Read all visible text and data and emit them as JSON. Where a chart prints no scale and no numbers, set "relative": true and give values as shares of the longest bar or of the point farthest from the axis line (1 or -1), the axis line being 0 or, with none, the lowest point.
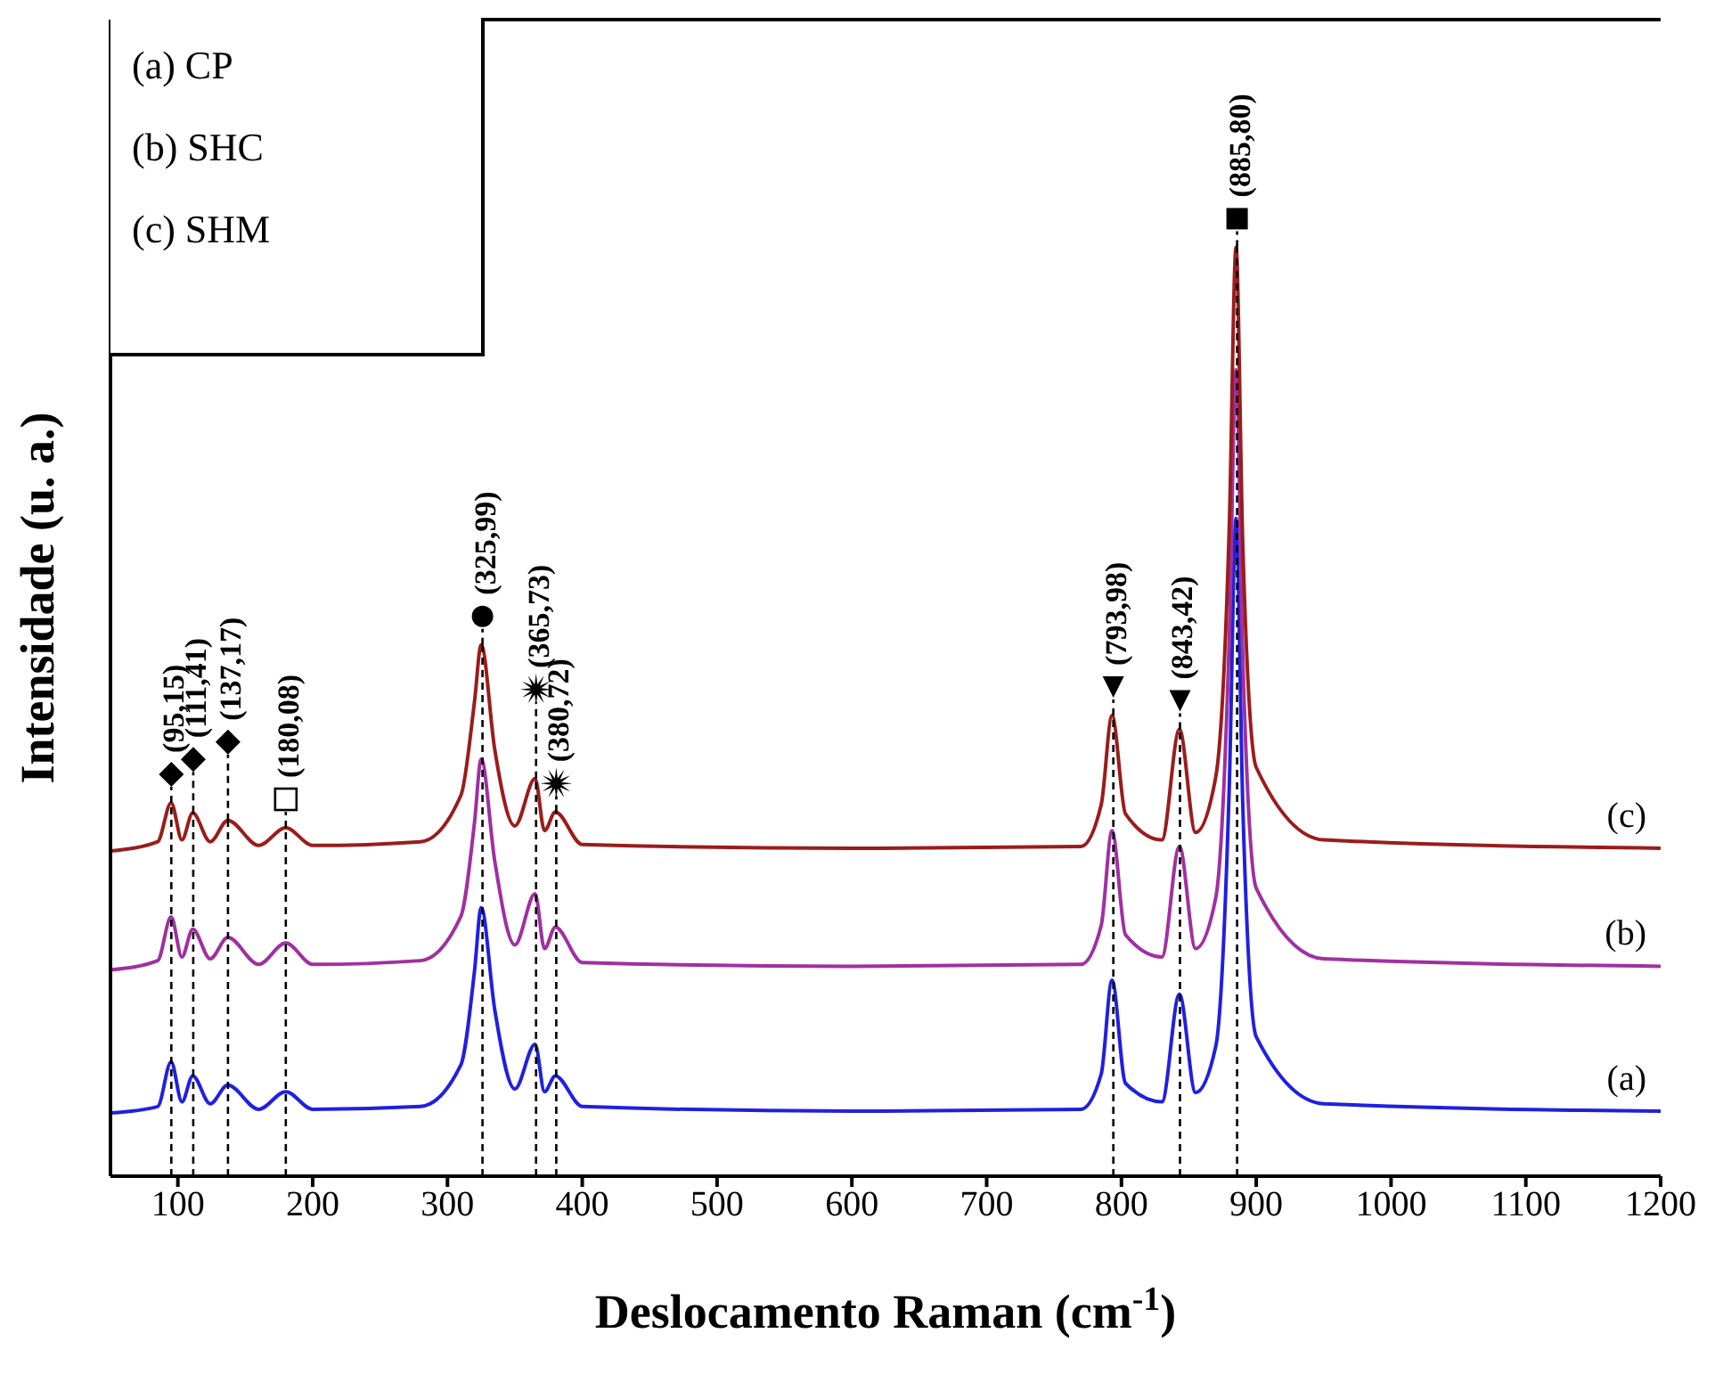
{
  "chart_data": {
    "type": "line",
    "relative": true,
    "xlabel": "Deslocamento Raman (cm$^{-1}$)",
    "ylabel": "Intensidade (u. a.)",
    "xlim": [
      50,
      1200
    ],
    "xticks": [
      100,
      200,
      300,
      400,
      500,
      600,
      700,
      800,
      900,
      1000,
      1100,
      1200
    ],
    "x": [
      50,
      85,
      95,
      103,
      111,
      124,
      137,
      160,
      180,
      200,
      280,
      310,
      320,
      325,
      335,
      350,
      365,
      372,
      380,
      400,
      600,
      770,
      785,
      793,
      803,
      830,
      843,
      855,
      870,
      880,
      885,
      890,
      900,
      950,
      1200
    ],
    "series": [
      {
        "name": "(a)",
        "color": "#2020e0",
        "values": [
          0.068,
          0.075,
          0.123,
          0.08,
          0.108,
          0.078,
          0.098,
          0.072,
          0.091,
          0.072,
          0.075,
          0.12,
          0.22,
          0.289,
          0.18,
          0.094,
          0.142,
          0.091,
          0.108,
          0.075,
          0.07,
          0.072,
          0.11,
          0.211,
          0.1,
          0.08,
          0.196,
          0.09,
          0.14,
          0.42,
          0.708,
          0.4,
          0.15,
          0.078,
          0.07
        ]
      },
      {
        "name": "(b)",
        "color": "#a030a0",
        "values": [
          0.222,
          0.232,
          0.279,
          0.236,
          0.266,
          0.234,
          0.257,
          0.228,
          0.251,
          0.228,
          0.232,
          0.28,
          0.38,
          0.449,
          0.34,
          0.249,
          0.304,
          0.245,
          0.268,
          0.23,
          0.226,
          0.228,
          0.27,
          0.372,
          0.26,
          0.236,
          0.355,
          0.245,
          0.3,
          0.58,
          0.868,
          0.56,
          0.31,
          0.234,
          0.226
        ]
      },
      {
        "name": "(c)",
        "color": "#9b1c1c",
        "values": [
          0.35,
          0.36,
          0.402,
          0.362,
          0.391,
          0.36,
          0.383,
          0.356,
          0.375,
          0.356,
          0.36,
          0.41,
          0.51,
          0.572,
          0.46,
          0.377,
          0.428,
          0.372,
          0.392,
          0.357,
          0.353,
          0.355,
          0.4,
          0.496,
          0.39,
          0.362,
          0.481,
          0.37,
          0.43,
          0.7,
          1,
          0.68,
          0.44,
          0.362,
          0.353
        ]
      }
    ],
    "ref_lines": [
      {
        "axis": "x",
        "value": 95.15,
        "label": "(95,15)",
        "line_style": "dashed",
        "color": "#000000"
      },
      {
        "axis": "x",
        "value": 111.41,
        "label": "(111,41)",
        "line_style": "dashed",
        "color": "#000000"
      },
      {
        "axis": "x",
        "value": 137.17,
        "label": "(137,17)",
        "line_style": "dashed",
        "color": "#000000"
      },
      {
        "axis": "x",
        "value": 180.08,
        "label": "(180,08)",
        "line_style": "dashed",
        "color": "#000000"
      },
      {
        "axis": "x",
        "value": 325.99,
        "label": "(325,99)",
        "line_style": "dashed",
        "color": "#000000"
      },
      {
        "axis": "x",
        "value": 365.73,
        "label": "(365,73)",
        "line_style": "dashed",
        "color": "#000000"
      },
      {
        "axis": "x",
        "value": 380.72,
        "label": "(380,72)",
        "line_style": "dashed",
        "color": "#000000"
      },
      {
        "axis": "x",
        "value": 793.98,
        "label": "(793,98)",
        "line_style": "dashed",
        "color": "#000000"
      },
      {
        "axis": "x",
        "value": 843.42,
        "label": "(843,42)",
        "line_style": "dashed",
        "color": "#000000"
      },
      {
        "axis": "x",
        "value": 885.8,
        "label": "(885,80)",
        "line_style": "dashed",
        "color": "#000000"
      }
    ],
    "annotations": [
      "(a) CP",
      "(b) SHC",
      "(c) SHM"
    ],
    "marker": "none",
    "line_style": "solid"
  }
}
